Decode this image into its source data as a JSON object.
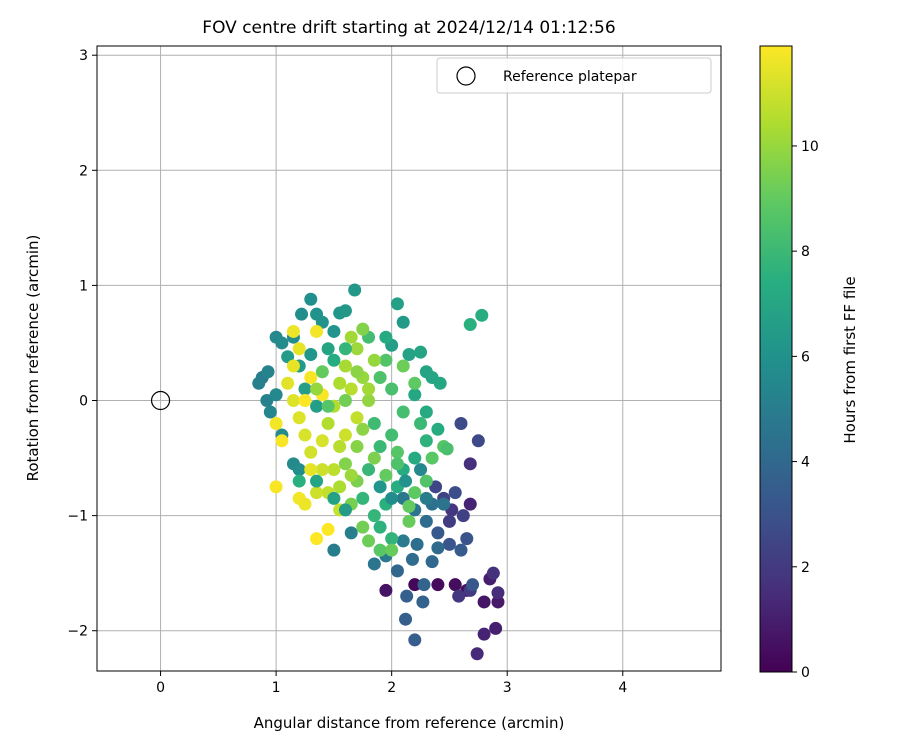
{
  "chart_data": {
    "type": "scatter",
    "title": "FOV centre drift starting at 2024/12/14 01:12:56",
    "xlabel": "Angular distance from reference (arcmin)",
    "ylabel": "Rotation from reference (arcmin)",
    "xlim": [
      -0.55,
      4.85
    ],
    "ylim": [
      -2.35,
      3.08
    ],
    "xticks": [
      0,
      1,
      2,
      3,
      4
    ],
    "yticks": [
      -2,
      -1,
      0,
      1,
      2,
      3
    ],
    "xtick_labels": [
      "0",
      "1",
      "2",
      "3",
      "4"
    ],
    "ytick_labels": [
      "−2",
      "−1",
      "0",
      "1",
      "2",
      "3"
    ],
    "grid": true,
    "legend": {
      "placement": "top-right",
      "entries": [
        "Reference platepar"
      ]
    },
    "reference_point": {
      "name": "Reference platepar",
      "x": 0,
      "y": 0,
      "marker": "open-circle"
    },
    "colorbar": {
      "label": "Hours from first FF file",
      "colormap": "viridis",
      "range": [
        0,
        11.9
      ],
      "ticks": [
        0,
        2,
        4,
        6,
        8,
        10
      ],
      "tick_labels": [
        "0",
        "2",
        "4",
        "6",
        "8",
        "10"
      ]
    },
    "series": [
      {
        "color_by": "hours",
        "points": [
          {
            "x": 2.2,
            "y": -1.6,
            "c": 0.2
          },
          {
            "x": 2.4,
            "y": -1.6,
            "c": 0.3
          },
          {
            "x": 2.55,
            "y": -1.6,
            "c": 0.4
          },
          {
            "x": 2.65,
            "y": -1.65,
            "c": 0.5
          },
          {
            "x": 1.95,
            "y": -1.65,
            "c": 0.6
          },
          {
            "x": 2.8,
            "y": -1.75,
            "c": 0.7
          },
          {
            "x": 2.92,
            "y": -1.75,
            "c": 0.8
          },
          {
            "x": 2.85,
            "y": -1.55,
            "c": 0.9
          },
          {
            "x": 2.9,
            "y": -1.98,
            "c": 1.0
          },
          {
            "x": 2.8,
            "y": -2.03,
            "c": 1.2
          },
          {
            "x": 2.74,
            "y": -2.2,
            "c": 1.4
          },
          {
            "x": 2.92,
            "y": -1.67,
            "c": 1.5
          },
          {
            "x": 2.88,
            "y": -1.5,
            "c": 1.7
          },
          {
            "x": 2.58,
            "y": -1.7,
            "c": 1.9
          },
          {
            "x": 2.68,
            "y": -1.65,
            "c": 2.0
          },
          {
            "x": 2.68,
            "y": -0.9,
            "c": 1.2
          },
          {
            "x": 2.68,
            "y": -0.55,
            "c": 1.6
          },
          {
            "x": 2.52,
            "y": -0.95,
            "c": 1.9
          },
          {
            "x": 2.5,
            "y": -1.05,
            "c": 2.1
          },
          {
            "x": 2.62,
            "y": -1.0,
            "c": 2.3
          },
          {
            "x": 2.75,
            "y": -0.35,
            "c": 2.6
          },
          {
            "x": 2.6,
            "y": -0.2,
            "c": 2.7
          },
          {
            "x": 2.38,
            "y": -0.75,
            "c": 2.5
          },
          {
            "x": 2.45,
            "y": -0.85,
            "c": 2.4
          },
          {
            "x": 2.55,
            "y": -0.8,
            "c": 2.8
          },
          {
            "x": 2.65,
            "y": -1.2,
            "c": 3.0
          },
          {
            "x": 2.5,
            "y": -1.25,
            "c": 3.1
          },
          {
            "x": 2.7,
            "y": -1.6,
            "c": 3.2
          },
          {
            "x": 2.4,
            "y": -1.15,
            "c": 3.3
          },
          {
            "x": 2.6,
            "y": -1.3,
            "c": 3.4
          },
          {
            "x": 2.2,
            "y": -2.08,
            "c": 3.5
          },
          {
            "x": 2.12,
            "y": -1.9,
            "c": 3.6
          },
          {
            "x": 2.13,
            "y": -1.7,
            "c": 3.6
          },
          {
            "x": 2.27,
            "y": -1.75,
            "c": 3.7
          },
          {
            "x": 2.28,
            "y": -1.6,
            "c": 3.8
          },
          {
            "x": 2.05,
            "y": -1.48,
            "c": 3.9
          },
          {
            "x": 2.35,
            "y": -1.4,
            "c": 4.0
          },
          {
            "x": 2.4,
            "y": -1.28,
            "c": 4.1
          },
          {
            "x": 2.18,
            "y": -1.38,
            "c": 4.2
          },
          {
            "x": 2.22,
            "y": -1.25,
            "c": 4.3
          },
          {
            "x": 2.3,
            "y": -1.05,
            "c": 4.2
          },
          {
            "x": 2.35,
            "y": -0.9,
            "c": 4.4
          },
          {
            "x": 2.45,
            "y": -0.9,
            "c": 4.5
          },
          {
            "x": 2.2,
            "y": -0.95,
            "c": 4.6
          },
          {
            "x": 2.1,
            "y": -0.85,
            "c": 4.7
          },
          {
            "x": 1.85,
            "y": -1.42,
            "c": 4.6
          },
          {
            "x": 1.95,
            "y": -1.35,
            "c": 4.8
          },
          {
            "x": 2.1,
            "y": -1.22,
            "c": 4.9
          },
          {
            "x": 1.5,
            "y": -1.3,
            "c": 5.0
          },
          {
            "x": 1.65,
            "y": -1.15,
            "c": 5.1
          },
          {
            "x": 0.88,
            "y": 0.2,
            "c": 5.0
          },
          {
            "x": 0.85,
            "y": 0.15,
            "c": 5.2
          },
          {
            "x": 0.93,
            "y": 0.25,
            "c": 5.3
          },
          {
            "x": 0.92,
            "y": 0.0,
            "c": 5.2
          },
          {
            "x": 0.95,
            "y": -0.1,
            "c": 5.4
          },
          {
            "x": 1.0,
            "y": 0.05,
            "c": 5.5
          },
          {
            "x": 1.05,
            "y": -0.3,
            "c": 5.6
          },
          {
            "x": 1.15,
            "y": -0.55,
            "c": 5.6
          },
          {
            "x": 1.2,
            "y": -0.6,
            "c": 5.7
          },
          {
            "x": 1.0,
            "y": 0.55,
            "c": 5.5
          },
          {
            "x": 1.05,
            "y": 0.5,
            "c": 5.6
          },
          {
            "x": 1.15,
            "y": 0.55,
            "c": 5.7
          },
          {
            "x": 1.22,
            "y": 0.75,
            "c": 5.8
          },
          {
            "x": 1.3,
            "y": 0.88,
            "c": 5.9
          },
          {
            "x": 1.35,
            "y": 0.75,
            "c": 6.0
          },
          {
            "x": 1.4,
            "y": 0.68,
            "c": 6.0
          },
          {
            "x": 1.5,
            "y": 0.6,
            "c": 6.1
          },
          {
            "x": 1.55,
            "y": 0.76,
            "c": 6.2
          },
          {
            "x": 1.6,
            "y": 0.78,
            "c": 6.3
          },
          {
            "x": 1.68,
            "y": 0.96,
            "c": 6.3
          },
          {
            "x": 1.3,
            "y": 0.4,
            "c": 6.2
          },
          {
            "x": 1.2,
            "y": 0.3,
            "c": 6.4
          },
          {
            "x": 1.1,
            "y": 0.38,
            "c": 6.5
          },
          {
            "x": 1.25,
            "y": 0.1,
            "c": 6.6
          },
          {
            "x": 1.35,
            "y": -0.05,
            "c": 6.6
          },
          {
            "x": 2.1,
            "y": 0.68,
            "c": 6.4
          },
          {
            "x": 2.05,
            "y": 0.84,
            "c": 6.7
          },
          {
            "x": 2.0,
            "y": 0.48,
            "c": 6.6
          },
          {
            "x": 2.15,
            "y": 0.4,
            "c": 6.8
          },
          {
            "x": 2.25,
            "y": 0.42,
            "c": 6.9
          },
          {
            "x": 2.3,
            "y": 0.25,
            "c": 6.9
          },
          {
            "x": 2.35,
            "y": 0.2,
            "c": 7.0
          },
          {
            "x": 2.42,
            "y": 0.15,
            "c": 7.1
          },
          {
            "x": 2.2,
            "y": 0.05,
            "c": 7.1
          },
          {
            "x": 2.3,
            "y": -0.1,
            "c": 7.2
          },
          {
            "x": 2.4,
            "y": -0.25,
            "c": 7.3
          },
          {
            "x": 2.2,
            "y": -0.5,
            "c": 7.2
          },
          {
            "x": 2.1,
            "y": -0.6,
            "c": 7.3
          },
          {
            "x": 2.05,
            "y": -0.75,
            "c": 7.4
          },
          {
            "x": 1.95,
            "y": -0.9,
            "c": 7.5
          },
          {
            "x": 2.78,
            "y": 0.74,
            "c": 7.4
          },
          {
            "x": 2.68,
            "y": 0.66,
            "c": 7.5
          },
          {
            "x": 1.9,
            "y": -1.1,
            "c": 7.6
          },
          {
            "x": 2.0,
            "y": -1.2,
            "c": 7.7
          },
          {
            "x": 1.85,
            "y": -1.0,
            "c": 7.8
          },
          {
            "x": 1.75,
            "y": -0.85,
            "c": 7.8
          },
          {
            "x": 1.8,
            "y": -0.6,
            "c": 7.9
          },
          {
            "x": 1.9,
            "y": -0.4,
            "c": 8.0
          },
          {
            "x": 1.85,
            "y": -0.2,
            "c": 8.1
          },
          {
            "x": 2.0,
            "y": -0.3,
            "c": 8.2
          },
          {
            "x": 2.1,
            "y": -0.1,
            "c": 8.3
          },
          {
            "x": 2.0,
            "y": 0.1,
            "c": 8.4
          },
          {
            "x": 1.9,
            "y": 0.2,
            "c": 8.5
          },
          {
            "x": 1.95,
            "y": 0.35,
            "c": 8.6
          },
          {
            "x": 2.05,
            "y": -0.45,
            "c": 8.7
          },
          {
            "x": 2.45,
            "y": -0.4,
            "c": 8.7
          },
          {
            "x": 2.35,
            "y": -0.5,
            "c": 8.8
          },
          {
            "x": 2.3,
            "y": -0.7,
            "c": 8.6
          },
          {
            "x": 2.2,
            "y": -0.8,
            "c": 8.9
          },
          {
            "x": 2.15,
            "y": -0.92,
            "c": 9.0
          },
          {
            "x": 1.9,
            "y": -1.3,
            "c": 8.8
          },
          {
            "x": 2.0,
            "y": -1.3,
            "c": 9.1
          },
          {
            "x": 1.8,
            "y": -1.22,
            "c": 9.2
          },
          {
            "x": 2.15,
            "y": -1.05,
            "c": 9.1
          },
          {
            "x": 1.75,
            "y": -1.1,
            "c": 9.3
          },
          {
            "x": 1.65,
            "y": -0.9,
            "c": 9.4
          },
          {
            "x": 1.7,
            "y": -0.7,
            "c": 9.5
          },
          {
            "x": 1.6,
            "y": -0.55,
            "c": 9.6
          },
          {
            "x": 1.7,
            "y": -0.4,
            "c": 9.7
          },
          {
            "x": 1.75,
            "y": -0.25,
            "c": 9.8
          },
          {
            "x": 1.8,
            "y": 0.0,
            "c": 9.9
          },
          {
            "x": 1.75,
            "y": 0.2,
            "c": 10.0
          },
          {
            "x": 1.85,
            "y": 0.35,
            "c": 10.0
          },
          {
            "x": 1.7,
            "y": 0.45,
            "c": 10.1
          },
          {
            "x": 1.65,
            "y": 0.55,
            "c": 10.2
          },
          {
            "x": 1.6,
            "y": 0.3,
            "c": 10.3
          },
          {
            "x": 1.55,
            "y": 0.15,
            "c": 10.4
          },
          {
            "x": 1.5,
            "y": -0.05,
            "c": 10.5
          },
          {
            "x": 1.45,
            "y": -0.2,
            "c": 10.5
          },
          {
            "x": 1.55,
            "y": -0.4,
            "c": 10.6
          },
          {
            "x": 1.5,
            "y": -0.6,
            "c": 10.7
          },
          {
            "x": 1.45,
            "y": -0.8,
            "c": 10.8
          },
          {
            "x": 1.55,
            "y": -0.95,
            "c": 10.9
          },
          {
            "x": 1.35,
            "y": -0.8,
            "c": 11.0
          },
          {
            "x": 1.4,
            "y": -0.6,
            "c": 11.0
          },
          {
            "x": 1.3,
            "y": -0.45,
            "c": 11.1
          },
          {
            "x": 1.25,
            "y": -0.3,
            "c": 11.2
          },
          {
            "x": 1.2,
            "y": -0.15,
            "c": 11.3
          },
          {
            "x": 1.15,
            "y": 0.0,
            "c": 11.3
          },
          {
            "x": 1.1,
            "y": 0.15,
            "c": 11.4
          },
          {
            "x": 1.15,
            "y": 0.3,
            "c": 11.5
          },
          {
            "x": 1.2,
            "y": 0.45,
            "c": 11.5
          },
          {
            "x": 1.15,
            "y": 0.6,
            "c": 11.6
          },
          {
            "x": 1.35,
            "y": 0.6,
            "c": 11.7
          },
          {
            "x": 1.3,
            "y": 0.2,
            "c": 11.8
          },
          {
            "x": 1.0,
            "y": -0.75,
            "c": 11.8
          },
          {
            "x": 1.35,
            "y": -1.2,
            "c": 11.9
          },
          {
            "x": 1.45,
            "y": -1.12,
            "c": 11.9
          },
          {
            "x": 1.2,
            "y": -0.85,
            "c": 11.7
          },
          {
            "x": 1.25,
            "y": -0.9,
            "c": 11.6
          },
          {
            "x": 1.0,
            "y": -0.2,
            "c": 11.7
          },
          {
            "x": 1.05,
            "y": -0.35,
            "c": 11.8
          },
          {
            "x": 1.25,
            "y": 0.0,
            "c": 11.9
          },
          {
            "x": 1.4,
            "y": 0.05,
            "c": 11.8
          },
          {
            "x": 1.3,
            "y": -0.6,
            "c": 11.5
          },
          {
            "x": 1.4,
            "y": -0.35,
            "c": 11.2
          },
          {
            "x": 1.6,
            "y": -0.3,
            "c": 11.0
          },
          {
            "x": 1.7,
            "y": -0.15,
            "c": 10.8
          },
          {
            "x": 1.65,
            "y": 0.1,
            "c": 10.6
          },
          {
            "x": 1.8,
            "y": 0.1,
            "c": 10.2
          },
          {
            "x": 1.55,
            "y": -0.75,
            "c": 10.4
          },
          {
            "x": 1.65,
            "y": -0.65,
            "c": 10.1
          },
          {
            "x": 1.85,
            "y": -0.5,
            "c": 9.5
          },
          {
            "x": 1.95,
            "y": -0.65,
            "c": 9.0
          },
          {
            "x": 2.05,
            "y": -0.55,
            "c": 8.5
          },
          {
            "x": 1.2,
            "y": -0.7,
            "c": 7.5
          },
          {
            "x": 1.35,
            "y": -0.7,
            "c": 7.0
          },
          {
            "x": 1.5,
            "y": -0.85,
            "c": 6.8
          },
          {
            "x": 1.6,
            "y": -0.95,
            "c": 6.5
          },
          {
            "x": 1.45,
            "y": 0.45,
            "c": 6.9
          },
          {
            "x": 1.5,
            "y": 0.35,
            "c": 7.3
          },
          {
            "x": 1.6,
            "y": 0.45,
            "c": 7.8
          },
          {
            "x": 1.8,
            "y": 0.55,
            "c": 8.2
          },
          {
            "x": 1.95,
            "y": 0.55,
            "c": 7.2
          },
          {
            "x": 1.75,
            "y": 0.62,
            "c": 9.6
          },
          {
            "x": 2.1,
            "y": 0.3,
            "c": 9.2
          },
          {
            "x": 2.2,
            "y": 0.15,
            "c": 8.9
          },
          {
            "x": 2.25,
            "y": -0.2,
            "c": 8.0
          },
          {
            "x": 2.3,
            "y": -0.35,
            "c": 7.6
          },
          {
            "x": 2.48,
            "y": -0.42,
            "c": 8.4
          },
          {
            "x": 1.4,
            "y": 0.25,
            "c": 9.0
          },
          {
            "x": 1.35,
            "y": 0.1,
            "c": 10.0
          },
          {
            "x": 1.45,
            "y": -0.05,
            "c": 8.7
          },
          {
            "x": 1.6,
            "y": 0.0,
            "c": 9.3
          },
          {
            "x": 1.7,
            "y": 0.25,
            "c": 9.8
          },
          {
            "x": 1.9,
            "y": -0.75,
            "c": 6.2
          },
          {
            "x": 2.0,
            "y": -0.85,
            "c": 5.8
          },
          {
            "x": 2.12,
            "y": -0.7,
            "c": 6.0
          },
          {
            "x": 2.25,
            "y": -0.6,
            "c": 5.5
          },
          {
            "x": 2.3,
            "y": -0.85,
            "c": 5.0
          }
        ]
      }
    ]
  }
}
